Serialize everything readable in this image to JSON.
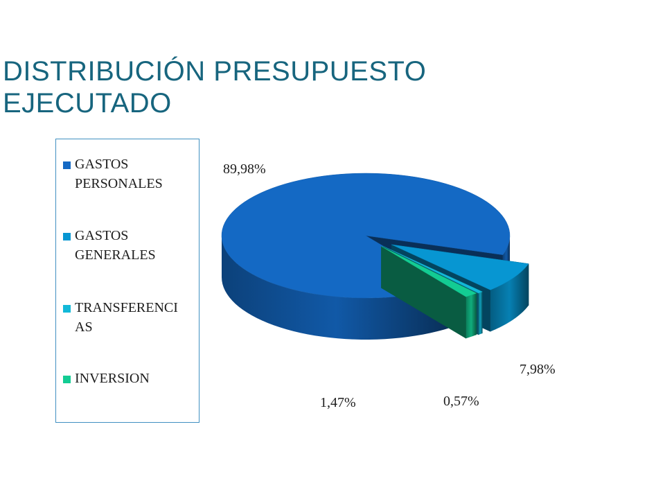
{
  "slide": {
    "title_line1": "DISTRIBUCIÓN PRESUPUESTO",
    "title_line2": "EJECUTADO"
  },
  "chart_data": {
    "type": "pie",
    "title": "DISTRIBUCIÓN PRESUPUESTO EJECUTADO",
    "legend_placement": "left",
    "series": [
      {
        "name": "GASTOS PERSONALES",
        "value": 89.98,
        "label": "89,98%",
        "color": "#1469c4"
      },
      {
        "name": "GASTOS GENERALES",
        "value": 7.98,
        "label": "7,98%",
        "color": "#0796d2"
      },
      {
        "name": "TRANSFERENCIAS",
        "value": 0.57,
        "label": "0,57%",
        "color": "#12b8d8"
      },
      {
        "name": "INVERSION",
        "value": 1.47,
        "label": "1,47%",
        "color": "#13cc93"
      }
    ],
    "legend_labels": [
      [
        "GASTOS",
        "PERSONALES"
      ],
      [
        "GASTOS",
        "GENERALES"
      ],
      [
        "TRANSFERENCI",
        "AS"
      ],
      [
        "INVERSION"
      ]
    ]
  }
}
